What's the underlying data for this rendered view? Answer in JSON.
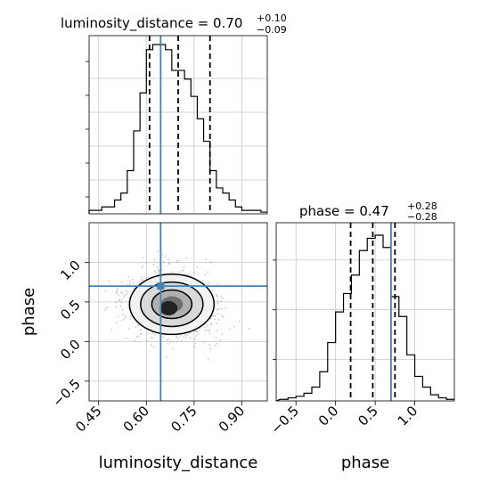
{
  "chart_data": [
    {
      "type": "step-histogram",
      "panel": "luminosity_distance marginal",
      "title": {
        "main": "luminosity_distance = 0.70",
        "upper": "+0.10",
        "lower": "−0.09"
      },
      "x": [
        0.43,
        0.45,
        0.47,
        0.49,
        0.51,
        0.53,
        0.55,
        0.57,
        0.59,
        0.61,
        0.63,
        0.65,
        0.67,
        0.69,
        0.71,
        0.73,
        0.75,
        0.77,
        0.79,
        0.81,
        0.83,
        0.85,
        0.87,
        0.89,
        0.91,
        0.93,
        0.95,
        0.97
      ],
      "counts": [
        2,
        2,
        4,
        4,
        8,
        12,
        25,
        48,
        70,
        95,
        98,
        98,
        95,
        83,
        83,
        78,
        68,
        55,
        42,
        25,
        15,
        12,
        8,
        4,
        2,
        2,
        2,
        1
      ],
      "xlim": [
        0.42,
        0.98
      ],
      "quantile_lines": [
        0.61,
        0.7,
        0.8
      ],
      "truth": 0.645
    },
    {
      "type": "2d-density",
      "panel": "luminosity_distance vs phase",
      "x_label": "luminosity_distance",
      "y_label": "phase",
      "xlim": [
        0.42,
        0.98
      ],
      "ylim": [
        -0.75,
        1.5
      ],
      "x_ticks": [
        "0.45",
        "0.60",
        "0.75",
        "0.90"
      ],
      "y_ticks": [
        "−0.5",
        "0.0",
        "0.5",
        "1.0"
      ],
      "center": [
        0.68,
        0.47
      ],
      "spread": [
        0.14,
        0.4
      ],
      "truth": [
        0.645,
        0.7
      ]
    },
    {
      "type": "step-histogram",
      "panel": "phase marginal",
      "title": {
        "main": "phase = 0.47",
        "upper": "+0.28",
        "lower": "−0.28"
      },
      "x": [
        -0.65,
        -0.55,
        -0.45,
        -0.35,
        -0.25,
        -0.15,
        -0.05,
        0.05,
        0.15,
        0.25,
        0.35,
        0.45,
        0.55,
        0.65,
        0.75,
        0.85,
        0.95,
        1.05,
        1.15,
        1.25,
        1.35,
        1.45
      ],
      "counts": [
        1,
        2,
        3,
        5,
        9,
        19,
        38,
        58,
        70,
        82,
        98,
        106,
        108,
        100,
        68,
        55,
        30,
        16,
        9,
        4,
        2,
        1
      ],
      "xlim": [
        -0.75,
        1.5
      ],
      "x_ticks": [
        "−0.5",
        "0.0",
        "0.5",
        "1.0"
      ],
      "x_label": "phase",
      "quantile_lines": [
        0.19,
        0.47,
        0.75
      ],
      "truth": 0.7
    }
  ],
  "colors": {
    "truth": "#4682b4",
    "hist": "#000000",
    "grid": "#c8c8c8"
  }
}
